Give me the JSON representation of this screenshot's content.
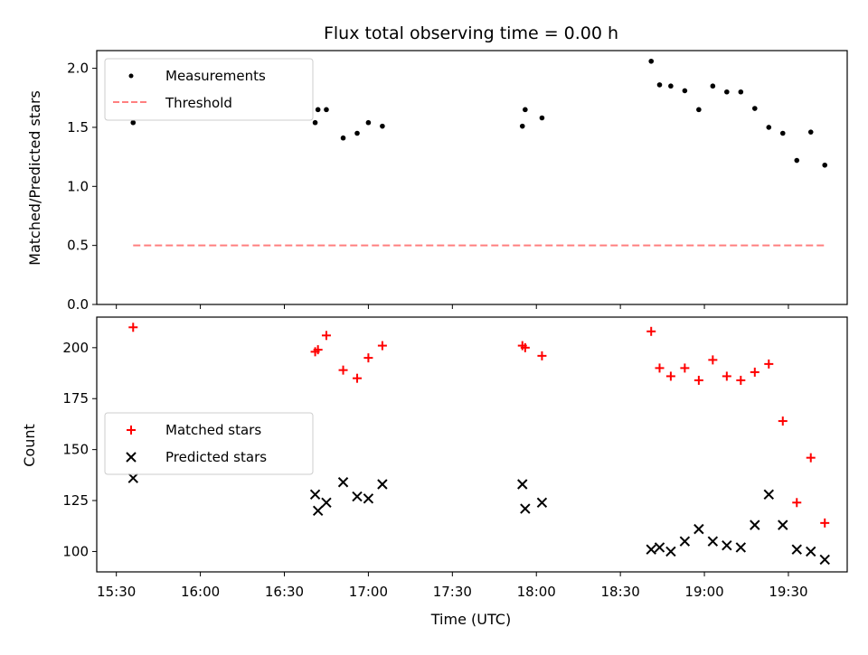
{
  "chart_data": [
    {
      "type": "scatter",
      "title": "Flux total observing time = 0.00 h",
      "xlabel": "",
      "ylabel": "Matched/Predicted stars",
      "ylim": [
        0,
        2.15
      ],
      "yticks": [
        "0.0",
        "0.5",
        "1.0",
        "1.5",
        "2.0"
      ],
      "legend_position": "upper-left",
      "series": [
        {
          "name": "Measurements",
          "marker": "dot",
          "color": "#000000",
          "points": [
            {
              "x": "15:36",
              "y": 1.54
            },
            {
              "x": "16:41",
              "y": 1.54
            },
            {
              "x": "16:42",
              "y": 1.65
            },
            {
              "x": "16:45",
              "y": 1.65
            },
            {
              "x": "16:51",
              "y": 1.41
            },
            {
              "x": "16:56",
              "y": 1.45
            },
            {
              "x": "17:00",
              "y": 1.54
            },
            {
              "x": "17:05",
              "y": 1.51
            },
            {
              "x": "17:55",
              "y": 1.51
            },
            {
              "x": "17:56",
              "y": 1.65
            },
            {
              "x": "18:02",
              "y": 1.58
            },
            {
              "x": "18:41",
              "y": 2.06
            },
            {
              "x": "18:44",
              "y": 1.86
            },
            {
              "x": "18:48",
              "y": 1.85
            },
            {
              "x": "18:53",
              "y": 1.81
            },
            {
              "x": "18:58",
              "y": 1.65
            },
            {
              "x": "19:03",
              "y": 1.85
            },
            {
              "x": "19:08",
              "y": 1.8
            },
            {
              "x": "19:13",
              "y": 1.8
            },
            {
              "x": "19:18",
              "y": 1.66
            },
            {
              "x": "19:23",
              "y": 1.5
            },
            {
              "x": "19:28",
              "y": 1.45
            },
            {
              "x": "19:33",
              "y": 1.22
            },
            {
              "x": "19:38",
              "y": 1.46
            },
            {
              "x": "19:43",
              "y": 1.18
            }
          ]
        },
        {
          "name": "Threshold",
          "style": "dashed",
          "color": "#ff7f7f",
          "points": [
            {
              "x": "15:36",
              "y": 0.5
            },
            {
              "x": "19:43",
              "y": 0.5
            }
          ]
        }
      ]
    },
    {
      "type": "scatter",
      "title": "",
      "xlabel": "Time (UTC)",
      "ylabel": "Count",
      "ylim": [
        90,
        215
      ],
      "yticks": [
        "100",
        "125",
        "150",
        "175",
        "200"
      ],
      "xticks": [
        "15:30",
        "16:00",
        "16:30",
        "17:00",
        "17:30",
        "18:00",
        "18:30",
        "19:00",
        "19:30"
      ],
      "legend_position": "center-left",
      "series": [
        {
          "name": "Matched stars",
          "marker": "plus",
          "color": "#ff0000",
          "points": [
            {
              "x": "15:36",
              "y": 210
            },
            {
              "x": "16:41",
              "y": 198
            },
            {
              "x": "16:42",
              "y": 199
            },
            {
              "x": "16:45",
              "y": 206
            },
            {
              "x": "16:51",
              "y": 189
            },
            {
              "x": "16:56",
              "y": 185
            },
            {
              "x": "17:00",
              "y": 195
            },
            {
              "x": "17:05",
              "y": 201
            },
            {
              "x": "17:55",
              "y": 201
            },
            {
              "x": "17:56",
              "y": 200
            },
            {
              "x": "18:02",
              "y": 196
            },
            {
              "x": "18:41",
              "y": 208
            },
            {
              "x": "18:44",
              "y": 190
            },
            {
              "x": "18:48",
              "y": 186
            },
            {
              "x": "18:53",
              "y": 190
            },
            {
              "x": "18:58",
              "y": 184
            },
            {
              "x": "19:03",
              "y": 194
            },
            {
              "x": "19:08",
              "y": 186
            },
            {
              "x": "19:13",
              "y": 184
            },
            {
              "x": "19:18",
              "y": 188
            },
            {
              "x": "19:23",
              "y": 192
            },
            {
              "x": "19:28",
              "y": 164
            },
            {
              "x": "19:33",
              "y": 124
            },
            {
              "x": "19:38",
              "y": 146
            },
            {
              "x": "19:43",
              "y": 114
            }
          ]
        },
        {
          "name": "Predicted stars",
          "marker": "x",
          "color": "#000000",
          "points": [
            {
              "x": "15:36",
              "y": 136
            },
            {
              "x": "16:41",
              "y": 128
            },
            {
              "x": "16:42",
              "y": 120
            },
            {
              "x": "16:45",
              "y": 124
            },
            {
              "x": "16:51",
              "y": 134
            },
            {
              "x": "16:56",
              "y": 127
            },
            {
              "x": "17:00",
              "y": 126
            },
            {
              "x": "17:05",
              "y": 133
            },
            {
              "x": "17:55",
              "y": 133
            },
            {
              "x": "17:56",
              "y": 121
            },
            {
              "x": "18:02",
              "y": 124
            },
            {
              "x": "18:41",
              "y": 101
            },
            {
              "x": "18:44",
              "y": 102
            },
            {
              "x": "18:48",
              "y": 100
            },
            {
              "x": "18:53",
              "y": 105
            },
            {
              "x": "18:58",
              "y": 111
            },
            {
              "x": "19:03",
              "y": 105
            },
            {
              "x": "19:08",
              "y": 103
            },
            {
              "x": "19:13",
              "y": 102
            },
            {
              "x": "19:18",
              "y": 113
            },
            {
              "x": "19:23",
              "y": 128
            },
            {
              "x": "19:28",
              "y": 113
            },
            {
              "x": "19:33",
              "y": 101
            },
            {
              "x": "19:38",
              "y": 100
            },
            {
              "x": "19:43",
              "y": 96
            }
          ]
        }
      ]
    }
  ]
}
